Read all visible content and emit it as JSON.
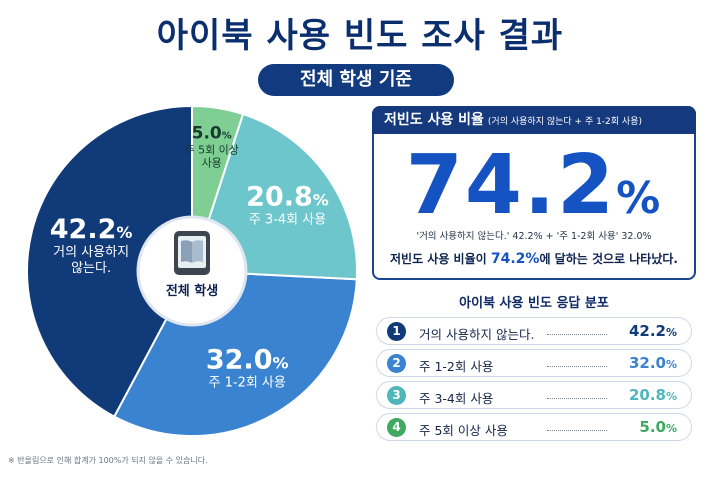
{
  "title": "아이북 사용 빈도 조사 결과",
  "subtitle": "전체 학생 기준",
  "chart_data": {
    "type": "pie",
    "slices": [
      {
        "label": "거의 사용하지 않는다.",
        "label_lines": [
          "거의 사용하지",
          "않는다."
        ],
        "value": 42.2,
        "value_text": "42.2",
        "color": "#113a78",
        "text_color": "#ffffff"
      },
      {
        "label": "주 1-2회 사용",
        "label_lines": [
          "주 1-2회 사용"
        ],
        "value": 32.0,
        "value_text": "32.0",
        "color": "#3a83d0",
        "text_color": "#ffffff"
      },
      {
        "label": "주 3-4회 사용",
        "label_lines": [
          "주 3-4회 사용"
        ],
        "value": 20.8,
        "value_text": "20.8",
        "color": "#6cc6cc",
        "text_color": "#ffffff"
      },
      {
        "label": "주 5회 이상 사용",
        "label_lines": [
          "주 5회 이상",
          "사용"
        ],
        "value": 5.0,
        "value_text": "5.0",
        "color": "#7fcf95",
        "text_color": "#183a2b"
      }
    ],
    "unit": "%",
    "center_label": "전체 학생",
    "center_icon": "tablet-book-icon"
  },
  "footnote": "※ 반올림으로 인해 합계가 100%가 되지 않을 수 있습니다.",
  "summary": {
    "heading": "저빈도 사용 비율",
    "heading_note": "(거의 사용하지 않는다 + 주 1-2회 사용)",
    "value": "74.2",
    "unit": "%",
    "formula": "'거의 사용하지 않는다.' 42.2% + '주 1-2회 사용' 32.0%",
    "conclusion_pre": "저빈도 사용 비율이 ",
    "conclusion_value": "74.2%",
    "conclusion_post": "에 달하는 것으로 나타났다."
  },
  "distribution": {
    "title": "아이북 사용 빈도 응답 분포",
    "rows": [
      {
        "num": "1",
        "label": "거의 사용하지 않는다.",
        "value": "42.2",
        "unit": "%",
        "color": "#113a78"
      },
      {
        "num": "2",
        "label": "주 1-2회 사용",
        "value": "32.0",
        "unit": "%",
        "color": "#3a83d0"
      },
      {
        "num": "3",
        "label": "주 3-4회 사용",
        "value": "20.8",
        "unit": "%",
        "color": "#4fb6bb"
      },
      {
        "num": "4",
        "label": "주 5회 이상 사용",
        "value": "5.0",
        "unit": "%",
        "color": "#3fa861"
      }
    ]
  }
}
